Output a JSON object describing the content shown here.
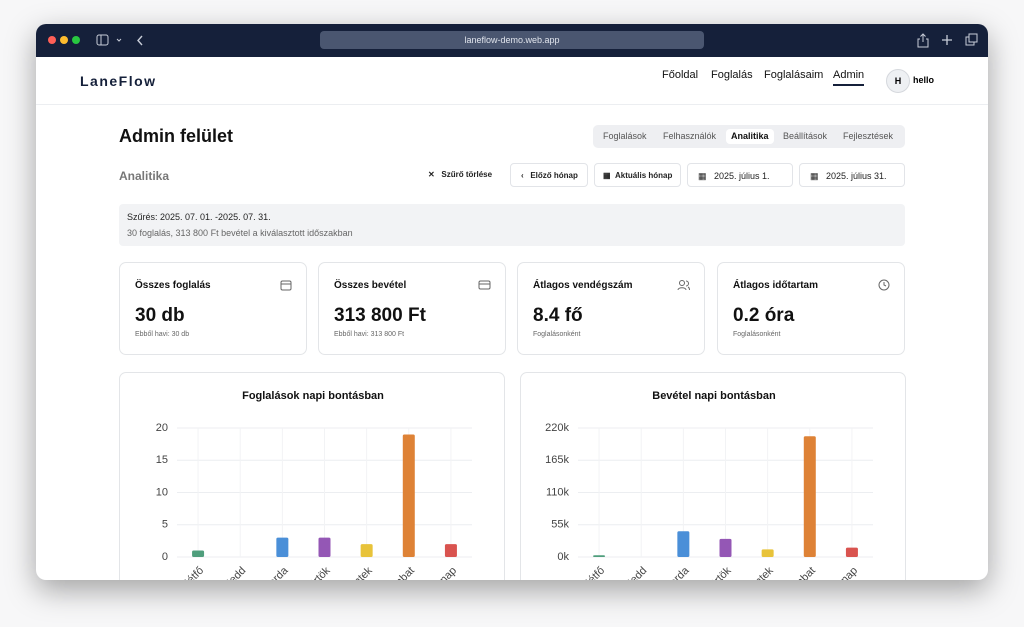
{
  "browser": {
    "url": "laneflow-demo.web.app"
  },
  "nav": {
    "logo": "LaneFlow",
    "links": [
      "Főoldal",
      "Foglalás",
      "Foglalásaim",
      "Admin"
    ],
    "avatar": "H",
    "user": "hello"
  },
  "page": {
    "title": "Admin felület",
    "tabs": [
      "Foglalások",
      "Felhasználók",
      "Analitika",
      "Beállítások",
      "Fejlesztések"
    ],
    "section": "Analitika",
    "buttons": {
      "clear": "Szűrő törlése",
      "prev": "Előző hónap",
      "current": "Aktuális hónap",
      "from": "2025. július 1.",
      "to": "2025. július 31."
    },
    "filter": {
      "line1": "Szűrés: 2025. 07. 01. -2025. 07. 31.",
      "line2": "30 foglalás, 313 800 Ft bevétel a kiválasztott időszakban"
    },
    "cards": [
      {
        "label": "Összes foglalás",
        "value": "30 db",
        "sub": "Ebből havi: 30 db"
      },
      {
        "label": "Összes bevétel",
        "value": "313 800 Ft",
        "sub": "Ebből havi: 313 800 Ft"
      },
      {
        "label": "Átlagos vendégszám",
        "value": "8.4 fő",
        "sub": "Foglalásonként"
      },
      {
        "label": "Átlagos időtartam",
        "value": "0.2 óra",
        "sub": "Foglalásonként"
      }
    ]
  },
  "chart_data": [
    {
      "type": "bar",
      "title": "Foglalások napi bontásban",
      "categories": [
        "Hétfő",
        "Kedd",
        "Szerda",
        "Csütörtök",
        "Péntek",
        "Szombat",
        "Vasárnap"
      ],
      "values": [
        1,
        0,
        3,
        3,
        2,
        19,
        2
      ],
      "colors": [
        "#4f9e7c",
        "#9aa0a6",
        "#4a8fd8",
        "#9457b5",
        "#e8c33a",
        "#de8236",
        "#d9534f"
      ],
      "ylim": [
        0,
        20
      ],
      "yticks": [
        0,
        5,
        10,
        15,
        20
      ],
      "grid": true
    },
    {
      "type": "bar",
      "title": "Bevétel napi bontásban",
      "categories": [
        "Hétfő",
        "Kedd",
        "Szerda",
        "Csütörtök",
        "Péntek",
        "Szombat",
        "Vasárnap"
      ],
      "values": [
        3000,
        0,
        44000,
        31000,
        13000,
        206000,
        16000
      ],
      "colors": [
        "#4f9e7c",
        "#9aa0a6",
        "#4a8fd8",
        "#9457b5",
        "#e8c33a",
        "#de8236",
        "#d9534f"
      ],
      "ylim": [
        0,
        220000
      ],
      "yticks": [
        {
          "value": 0,
          "label": "0k"
        },
        {
          "value": 55000,
          "label": "55k"
        },
        {
          "value": 110000,
          "label": "110k"
        },
        {
          "value": 165000,
          "label": "165k"
        },
        {
          "value": 220000,
          "label": "220k"
        }
      ],
      "grid": true
    }
  ]
}
